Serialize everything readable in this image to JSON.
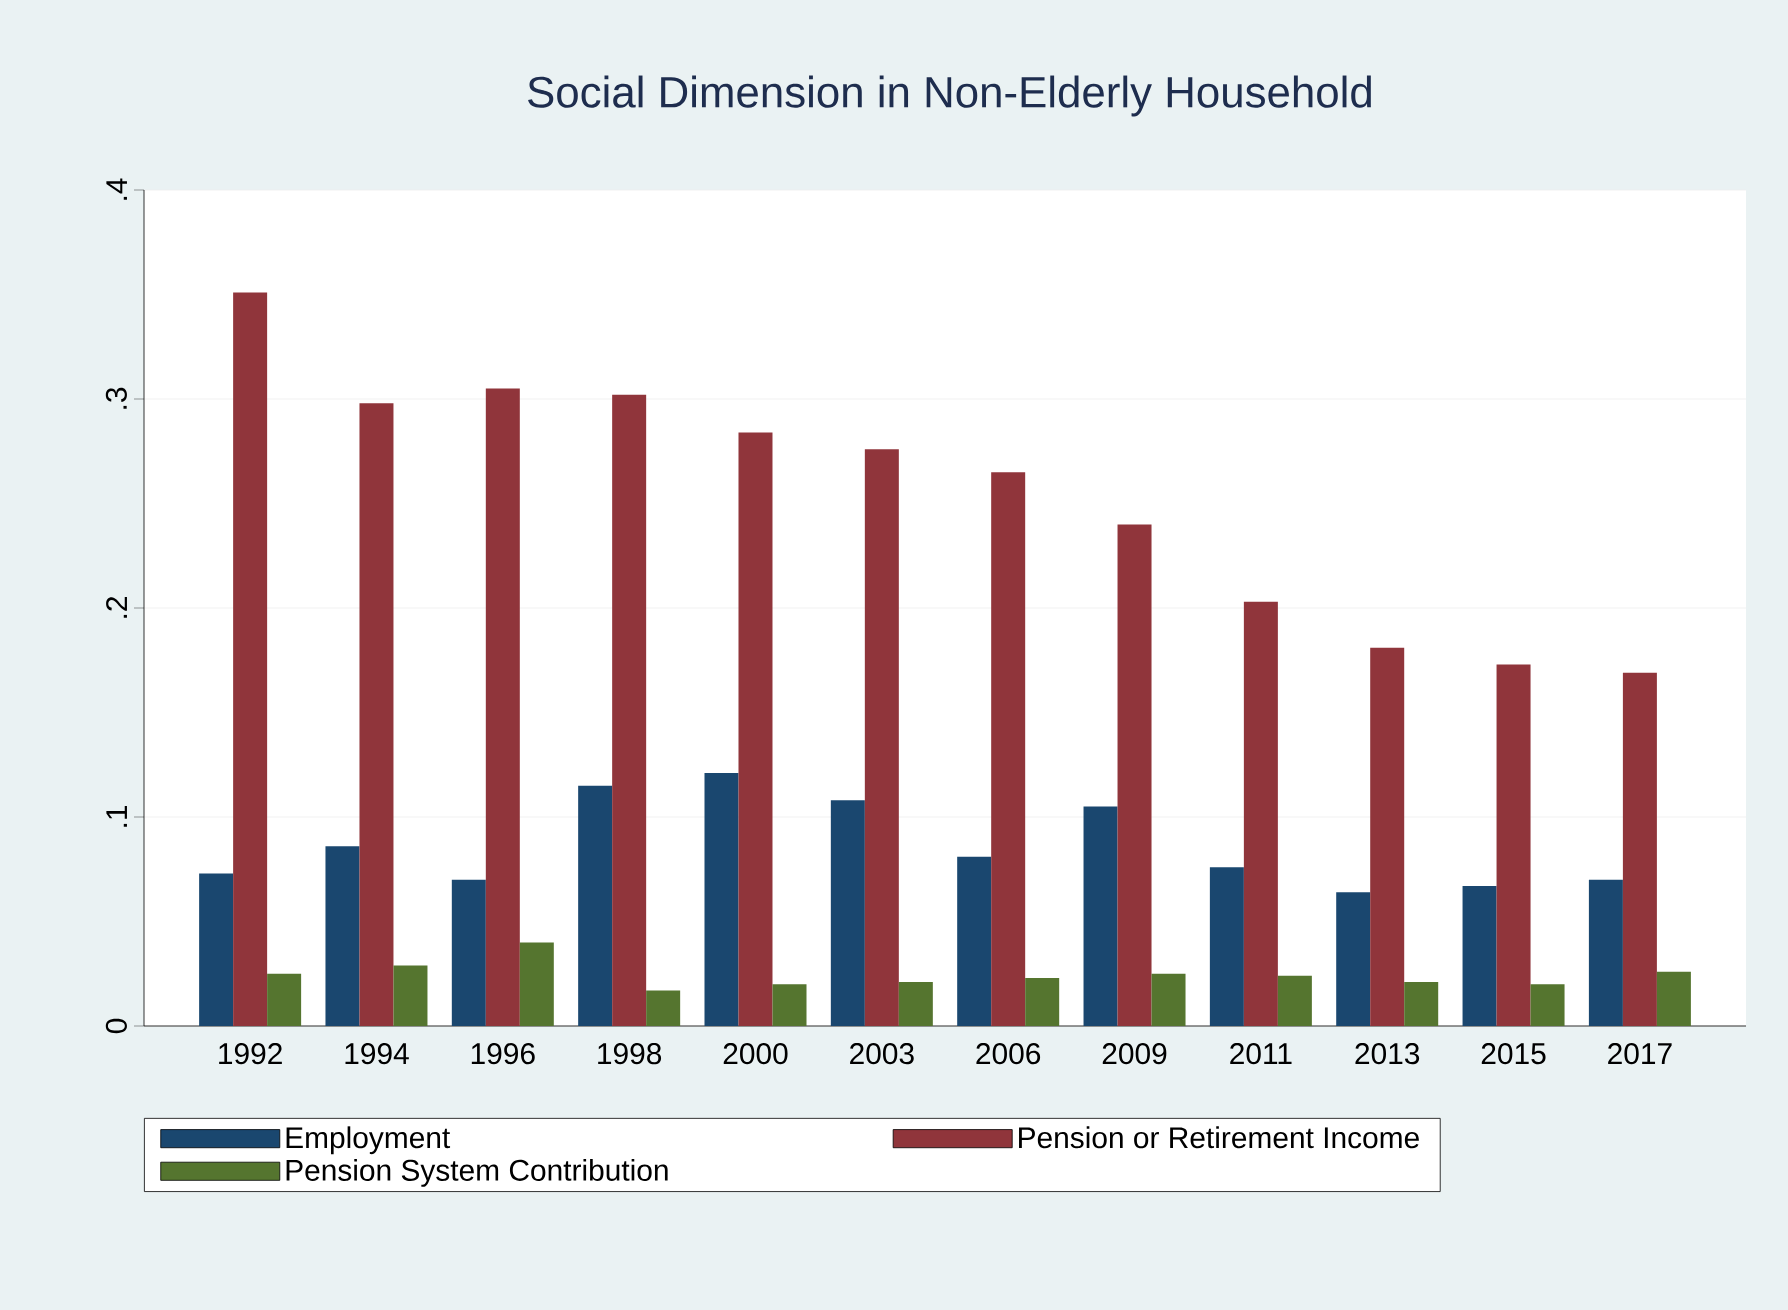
{
  "chart_data": {
    "type": "bar",
    "title": "Social Dimension in Non-Elderly Household",
    "categories": [
      "1992",
      "1994",
      "1996",
      "1998",
      "2000",
      "2003",
      "2006",
      "2009",
      "2011",
      "2013",
      "2015",
      "2017"
    ],
    "series": [
      {
        "name": "Employment",
        "color": "#1a476f",
        "values": [
          0.073,
          0.086,
          0.07,
          0.115,
          0.121,
          0.108,
          0.081,
          0.105,
          0.076,
          0.064,
          0.067,
          0.07
        ]
      },
      {
        "name": "Pension or Retirement Income",
        "color": "#90353b",
        "values": [
          0.351,
          0.298,
          0.305,
          0.302,
          0.284,
          0.276,
          0.265,
          0.24,
          0.203,
          0.181,
          0.173,
          0.169
        ]
      },
      {
        "name": "Pension System Contribution",
        "color": "#55752f",
        "values": [
          0.025,
          0.029,
          0.04,
          0.017,
          0.02,
          0.021,
          0.023,
          0.025,
          0.024,
          0.021,
          0.02,
          0.026
        ]
      }
    ],
    "ylim": [
      0,
      0.4
    ],
    "yticks": [
      {
        "value": 0,
        "label": "0"
      },
      {
        "value": 0.1,
        "label": ".1"
      },
      {
        "value": 0.2,
        "label": ".2"
      },
      {
        "value": 0.3,
        "label": ".3"
      },
      {
        "value": 0.4,
        "label": ".4"
      }
    ],
    "grid": "y",
    "legend": "bottom"
  }
}
